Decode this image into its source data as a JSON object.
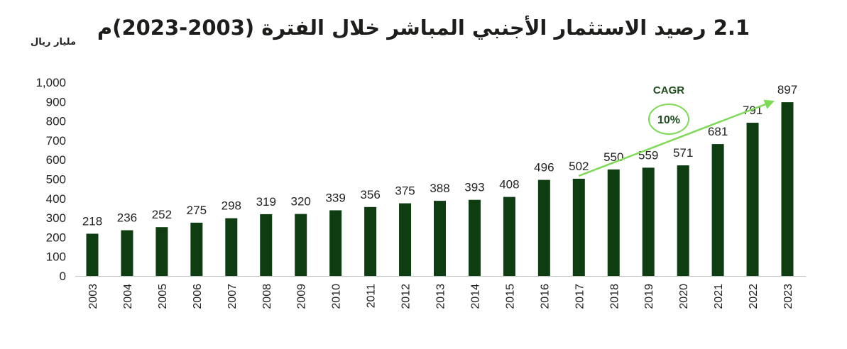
{
  "chart_data": {
    "type": "bar",
    "title": "2.1 رصيد الاستثمار الأجنبي المباشر خلال الفترة (2003-2023)م",
    "ylabel": "مليار ريال",
    "xlabel": "",
    "categories": [
      "2003",
      "2004",
      "2005",
      "2006",
      "2007",
      "2008",
      "2009",
      "2010",
      "2011",
      "2012",
      "2013",
      "2014",
      "2015",
      "2016",
      "2017",
      "2018",
      "2019",
      "2020",
      "2021",
      "2022",
      "2023"
    ],
    "values": [
      218,
      236,
      252,
      275,
      298,
      319,
      320,
      339,
      356,
      375,
      388,
      393,
      408,
      496,
      502,
      550,
      559,
      571,
      681,
      791,
      897
    ],
    "ylim": [
      0,
      1000
    ],
    "yticks": [
      "0",
      "100",
      "200",
      "300",
      "400",
      "500",
      "600",
      "700",
      "800",
      "900",
      "1,000"
    ],
    "grid": false,
    "legend": "none",
    "annotation": {
      "label": "CAGR",
      "value": "10%",
      "from_category": "2017",
      "to_category": "2023"
    },
    "colors": {
      "bar": "#0f3d12",
      "arrow": "#7ed957",
      "annotation_text": "#1f4d1f"
    }
  }
}
